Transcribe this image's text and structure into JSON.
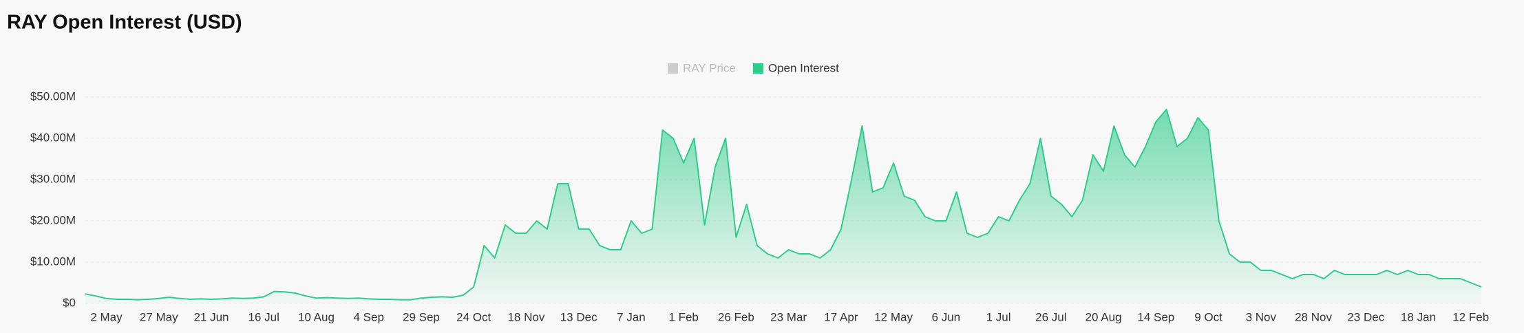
{
  "chart_data": {
    "type": "area",
    "title": "RAY Open Interest (USD)",
    "legend": [
      {
        "name": "RAY Price",
        "color": "#cccccc",
        "active": false
      },
      {
        "name": "Open Interest",
        "color": "#2ecc8c",
        "active": true
      }
    ],
    "categories": [
      null,
      null,
      "2 May",
      null,
      null,
      null,
      null,
      "27 May",
      null,
      null,
      null,
      null,
      "21 Jun",
      null,
      null,
      null,
      null,
      "16 Jul",
      null,
      null,
      null,
      null,
      "10 Aug",
      null,
      null,
      null,
      null,
      "4 Sep",
      null,
      null,
      null,
      null,
      "29 Sep",
      null,
      null,
      null,
      null,
      "24 Oct",
      null,
      null,
      null,
      null,
      "18 Nov",
      null,
      null,
      null,
      null,
      "13 Dec",
      null,
      null,
      null,
      null,
      "7 Jan",
      null,
      null,
      null,
      null,
      "1 Feb",
      null,
      null,
      null,
      null,
      "26 Feb",
      null,
      null,
      null,
      null,
      "23 Mar",
      null,
      null,
      null,
      null,
      "17 Apr",
      null,
      null,
      null,
      null,
      "12 May",
      null,
      null,
      null,
      null,
      "6 Jun",
      null,
      null,
      null,
      null,
      "1 Jul",
      null,
      null,
      null,
      null,
      "26 Jul",
      null,
      null,
      null,
      null,
      "20 Aug",
      null,
      null,
      null,
      null,
      "14 Sep",
      null,
      null,
      null,
      null,
      "9 Oct",
      null,
      null,
      null,
      null,
      "3 Nov",
      null,
      null,
      null,
      null,
      "28 Nov",
      null,
      null,
      null,
      null,
      "23 Dec",
      null,
      null,
      null,
      null,
      "18 Jan",
      null,
      null,
      null,
      null,
      "12 Feb",
      null
    ],
    "series": [
      {
        "name": "Open Interest",
        "color": "#2ecc8c",
        "values": [
          2300000,
          1800000,
          1200000,
          1000000,
          1000000,
          900000,
          1000000,
          1200000,
          1500000,
          1200000,
          1000000,
          1100000,
          1000000,
          1100000,
          1300000,
          1200000,
          1300000,
          1600000,
          2900000,
          2800000,
          2500000,
          1800000,
          1300000,
          1400000,
          1300000,
          1200000,
          1300000,
          1100000,
          1000000,
          1000000,
          900000,
          900000,
          1300000,
          1500000,
          1600000,
          1500000,
          2000000,
          4000000,
          14000000,
          11000000,
          19000000,
          17000000,
          17000000,
          20000000,
          18000000,
          29000000,
          29000000,
          18000000,
          18000000,
          14000000,
          13000000,
          13000000,
          20000000,
          17000000,
          18000000,
          42000000,
          40000000,
          34000000,
          40000000,
          19000000,
          33000000,
          40000000,
          16000000,
          24000000,
          14000000,
          12000000,
          11000000,
          13000000,
          12000000,
          12000000,
          11000000,
          13000000,
          18000000,
          30000000,
          43000000,
          27000000,
          28000000,
          34000000,
          26000000,
          25000000,
          21000000,
          20000000,
          20000000,
          27000000,
          17000000,
          16000000,
          17000000,
          21000000,
          20000000,
          25000000,
          29000000,
          40000000,
          26000000,
          24000000,
          21000000,
          25000000,
          36000000,
          32000000,
          43000000,
          36000000,
          33000000,
          38000000,
          44000000,
          47000000,
          38000000,
          40000000,
          45000000,
          42000000,
          20000000,
          12000000,
          10000000,
          10000000,
          8000000,
          8000000,
          7000000,
          6000000,
          7000000,
          7000000,
          6000000,
          8000000,
          7000000,
          7000000,
          7000000,
          7000000,
          8000000,
          7000000,
          8000000,
          7000000,
          7000000,
          6000000,
          6000000,
          6000000,
          5000000,
          4000000
        ]
      }
    ],
    "ylim": [
      0,
      50000000
    ],
    "yticks": [
      {
        "value": 0,
        "label": "$0"
      },
      {
        "value": 10000000,
        "label": "$10.00M"
      },
      {
        "value": 20000000,
        "label": "$20.00M"
      },
      {
        "value": 30000000,
        "label": "$30.00M"
      },
      {
        "value": 40000000,
        "label": "$40.00M"
      },
      {
        "value": 50000000,
        "label": "$50.00M"
      }
    ],
    "grid": true
  }
}
